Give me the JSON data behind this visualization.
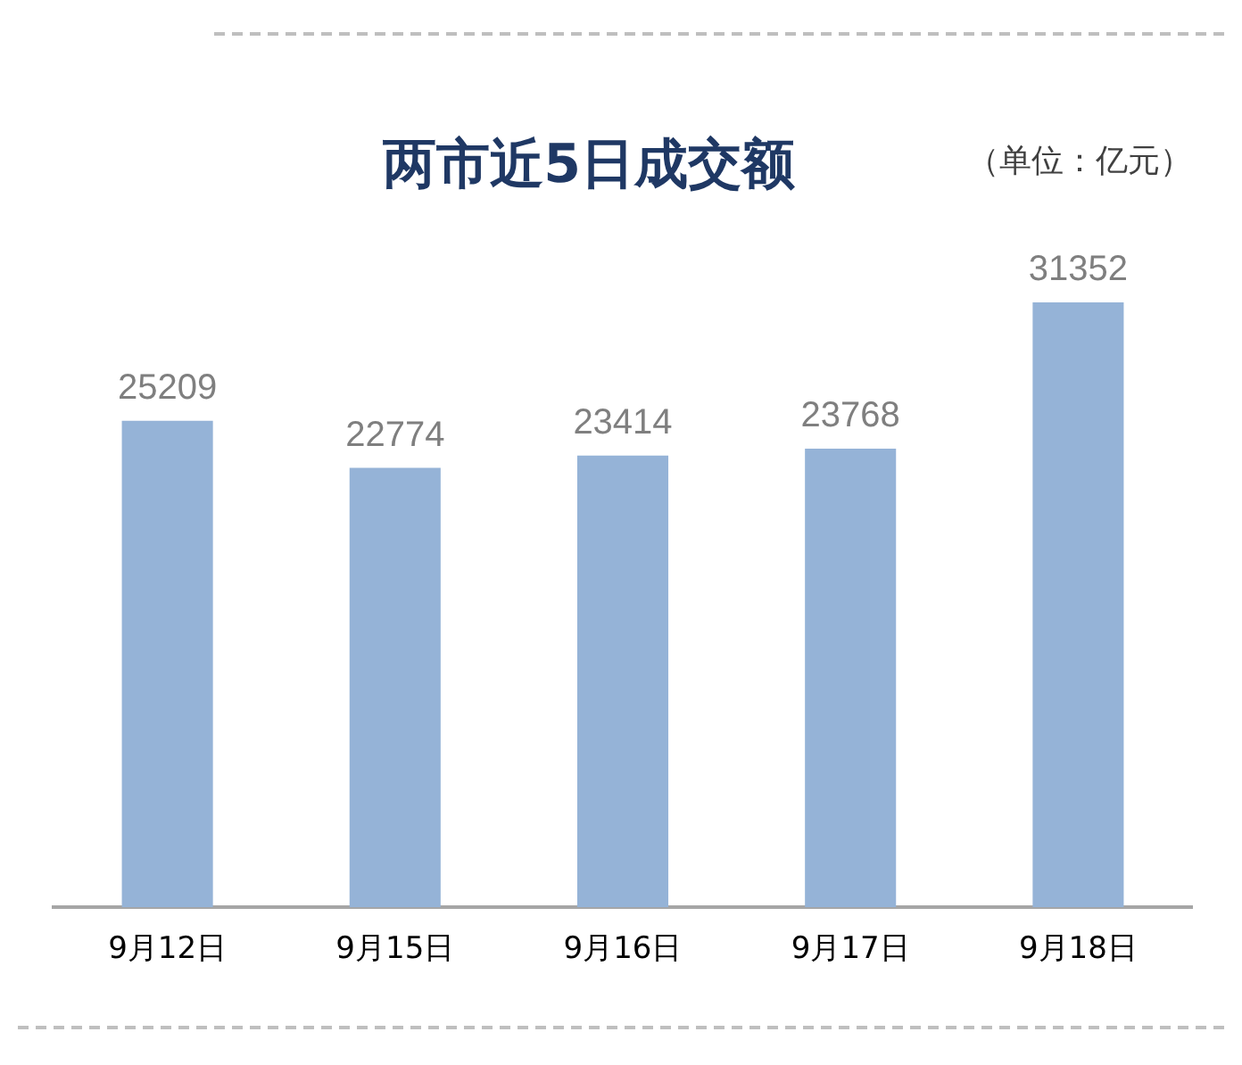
{
  "chart_data": {
    "type": "bar",
    "title": "两市近5日成交额",
    "annotations": [
      "（单位：亿元）"
    ],
    "categories": [
      "9月12日",
      "9月15日",
      "9月16日",
      "9月17日",
      "9月18日"
    ],
    "values": [
      25209,
      22774,
      23414,
      23768,
      31352
    ],
    "color": "#95b3d7",
    "tick_labels": "x",
    "data_labels": true,
    "grid": false,
    "legend": false
  }
}
